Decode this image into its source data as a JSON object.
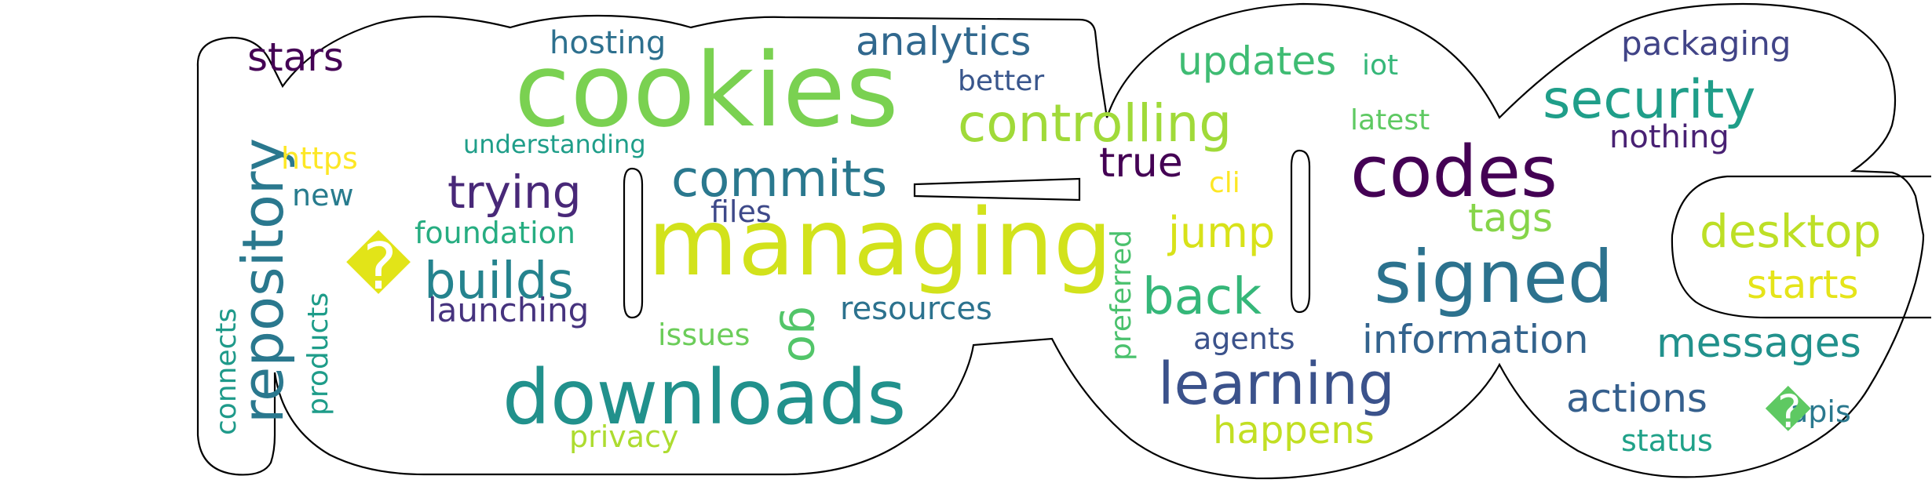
{
  "words": [
    {
      "text": "cookies",
      "color": "#7ad151"
    },
    {
      "text": "managing",
      "color": "#d2e21b"
    },
    {
      "text": "downloads",
      "color": "#21918c"
    },
    {
      "text": "codes",
      "color": "#440154"
    },
    {
      "text": "signed",
      "color": "#2c728e"
    },
    {
      "text": "controlling",
      "color": "#a0da39"
    },
    {
      "text": "repository",
      "color": "#2a788e"
    },
    {
      "text": "learning",
      "color": "#3b528b"
    },
    {
      "text": "security",
      "color": "#1f9e89"
    },
    {
      "text": "commits",
      "color": "#2a788e"
    },
    {
      "text": "builds",
      "color": "#25838e"
    },
    {
      "text": "trying",
      "color": "#482878"
    },
    {
      "text": "desktop",
      "color": "#bddf26"
    },
    {
      "text": "back",
      "color": "#35b779"
    },
    {
      "text": "analytics",
      "color": "#31688e"
    },
    {
      "text": "information",
      "color": "#33638d"
    },
    {
      "text": "messages",
      "color": "#21918c"
    },
    {
      "text": "actions",
      "color": "#355f8d"
    },
    {
      "text": "updates",
      "color": "#3fbc73"
    },
    {
      "text": "jump",
      "color": "#d8e219"
    },
    {
      "text": "happens",
      "color": "#c2df23"
    },
    {
      "text": "stars",
      "color": "#440154"
    },
    {
      "text": "true",
      "color": "#440154"
    },
    {
      "text": "starts",
      "color": "#e5e419"
    },
    {
      "text": "tags",
      "color": "#86d549"
    },
    {
      "text": "go",
      "color": "#52c569"
    },
    {
      "text": "packaging",
      "color": "#414487"
    },
    {
      "text": "nothing",
      "color": "#482173"
    },
    {
      "text": "launching",
      "color": "#46337e"
    },
    {
      "text": "hosting",
      "color": "#2d708e"
    },
    {
      "text": "resources",
      "color": "#2c728e"
    },
    {
      "text": "foundation",
      "color": "#26ad81"
    },
    {
      "text": "products",
      "color": "#1e9c89"
    },
    {
      "text": "connects",
      "color": "#1f9a8a"
    },
    {
      "text": "new",
      "color": "#287c8e"
    },
    {
      "text": "files",
      "color": "#3e4989"
    },
    {
      "text": "better",
      "color": "#39568c"
    },
    {
      "text": "preferred",
      "color": "#4ac16d"
    },
    {
      "text": "agents",
      "color": "#3b528b"
    },
    {
      "text": "status",
      "color": "#1fa188"
    },
    {
      "text": "apis",
      "color": "#2a788e"
    },
    {
      "text": "latest",
      "color": "#5ec962"
    },
    {
      "text": "iot",
      "color": "#35b779"
    },
    {
      "text": "issues",
      "color": "#6ccd5a"
    },
    {
      "text": "privacy",
      "color": "#addc30"
    },
    {
      "text": "https",
      "color": "#fde725"
    },
    {
      "text": "cli",
      "color": "#fde725"
    },
    {
      "text": "understanding",
      "color": "#1f9e89"
    },
    {
      "text": "�",
      "color": "#e2e418"
    },
    {
      "text": "�",
      "color": "#5ec962"
    }
  ]
}
